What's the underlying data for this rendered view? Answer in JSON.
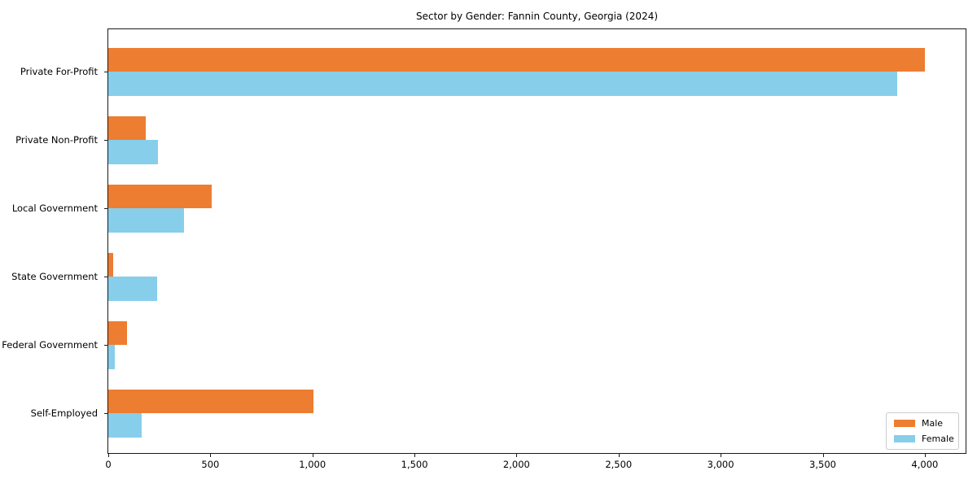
{
  "title": "Sector by Gender: Fannin County, Georgia (2024)",
  "chart_data": {
    "type": "bar",
    "orientation": "horizontal",
    "title": "Sector by Gender: Fannin County, Georgia (2024)",
    "categories": [
      "Private For-Profit",
      "Private Non-Profit",
      "Local Government",
      "State Government",
      "Federal Government",
      "Self-Employed"
    ],
    "series": [
      {
        "name": "Male",
        "color": "#ed7d31",
        "values": [
          4000,
          185,
          505,
          25,
          90,
          1005
        ]
      },
      {
        "name": "Female",
        "color": "#87ceeb",
        "values": [
          3865,
          245,
          370,
          240,
          30,
          165
        ]
      }
    ],
    "xlabel": "",
    "ylabel": "",
    "xlim": [
      0,
      4200
    ],
    "xticks": [
      0,
      500,
      1000,
      1500,
      2000,
      2500,
      3000,
      3500,
      4000
    ],
    "xtick_labels": [
      "0",
      "500",
      "1,000",
      "1,500",
      "2,000",
      "2,500",
      "3,000",
      "3,500",
      "4,000"
    ],
    "grid": false,
    "legend_position": "lower right",
    "background_color": "#ffffff",
    "spine_color": "#1a1a1a"
  }
}
